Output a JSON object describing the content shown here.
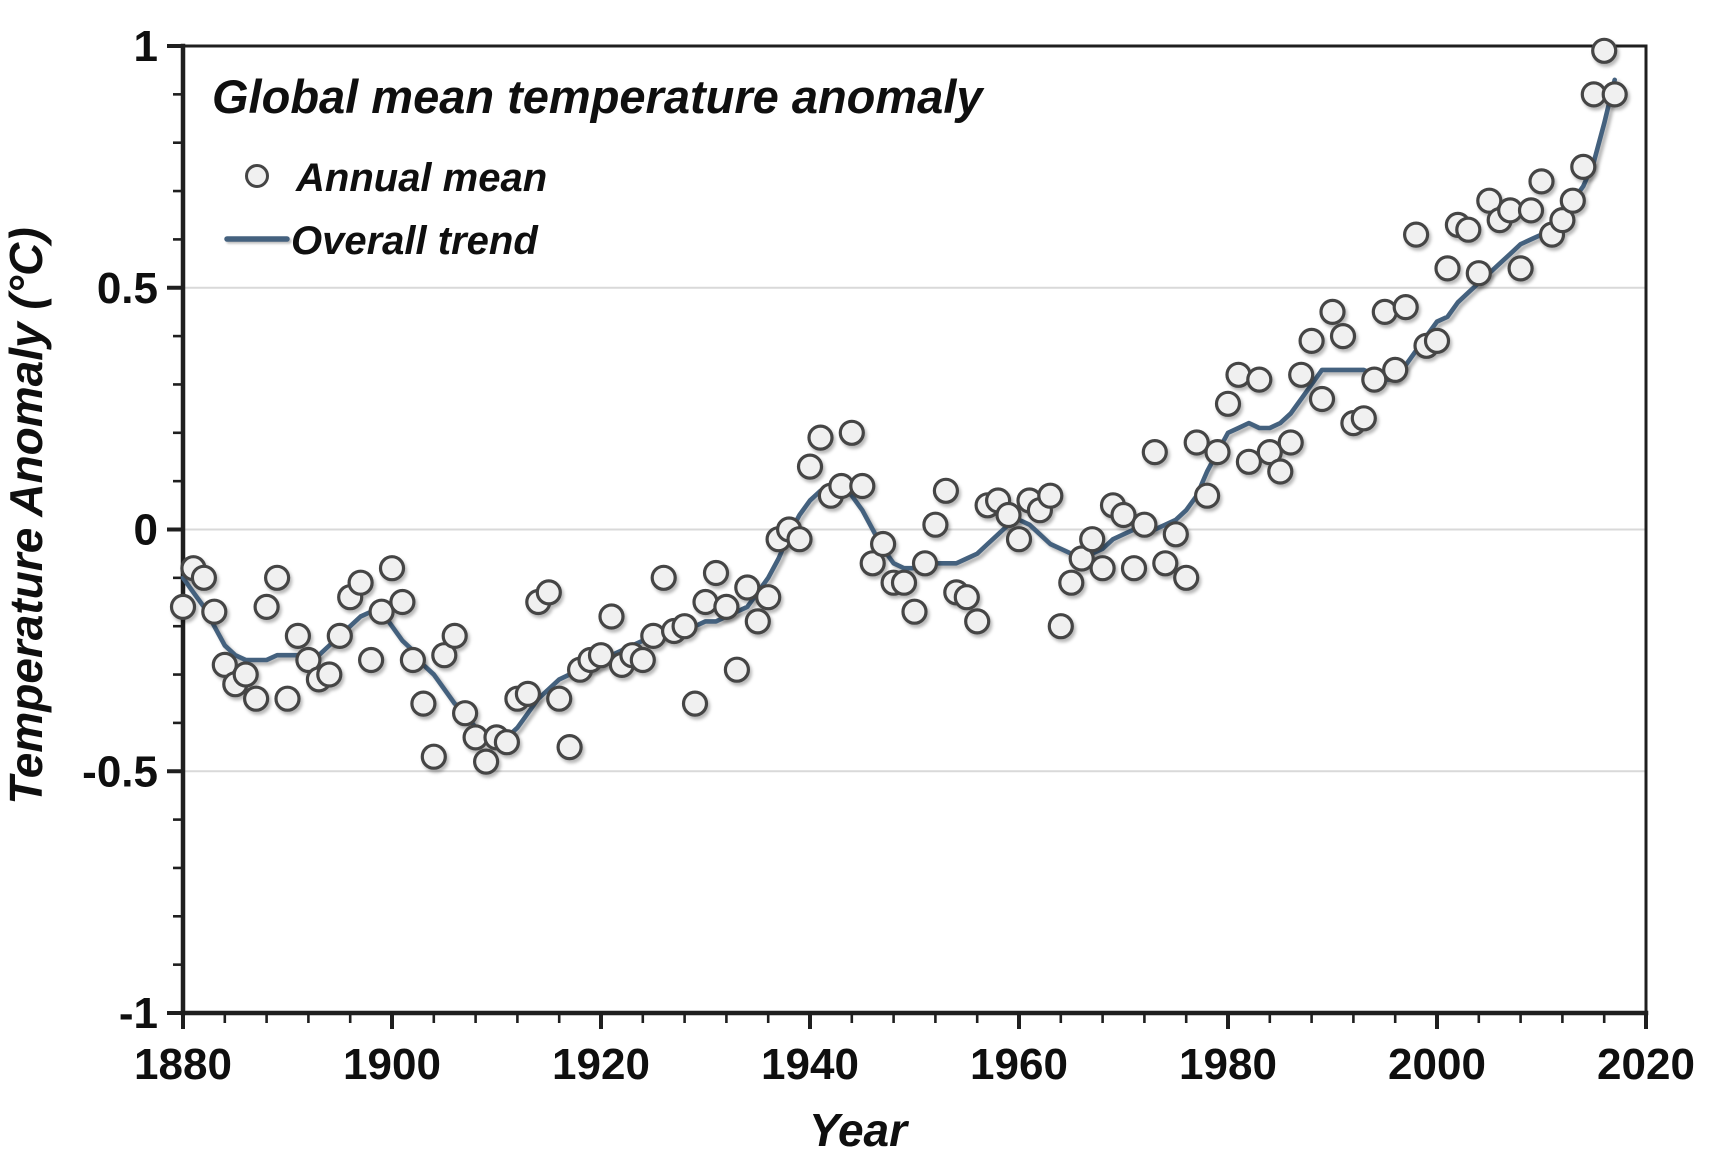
{
  "chart_data": {
    "type": "scatter",
    "title": "Global mean temperature anomaly",
    "xlabel": "Year",
    "ylabel": "Temperature Anomaly (°C)",
    "xlim": [
      1880,
      2020
    ],
    "ylim": [
      -1,
      1
    ],
    "grid": "horizontal-only",
    "legend_position": "top-left",
    "background": "#ffffff",
    "axis_color": "#1f1f1f",
    "grid_color": "#d9d9d9",
    "x_tick_values": [
      1880,
      1900,
      1920,
      1940,
      1960,
      1980,
      2000,
      2020
    ],
    "x_tick_labels": [
      "1880",
      "1900",
      "1920",
      "1940",
      "1960",
      "1980",
      "2000",
      "2020"
    ],
    "x_minor_tick_step": 4,
    "y_tick_values": [
      1,
      0.5,
      0,
      -0.5,
      -1
    ],
    "y_tick_labels": [
      "1",
      "0.5",
      "0",
      "-0.5",
      "-1"
    ],
    "y_minor_tick_step": 0.1,
    "y_gridlines": [
      0.5,
      0,
      -0.5
    ],
    "x_start": 1880,
    "x_end": 2017,
    "series": [
      {
        "name": "Annual mean",
        "type": "scatter",
        "marker": "circle",
        "marker_fill": "#f0f0f0",
        "marker_stroke": "#454545",
        "values": [
          -0.16,
          -0.08,
          -0.1,
          -0.17,
          -0.28,
          -0.32,
          -0.3,
          -0.35,
          -0.16,
          -0.1,
          -0.35,
          -0.22,
          -0.27,
          -0.31,
          -0.3,
          -0.22,
          -0.14,
          -0.11,
          -0.27,
          -0.17,
          -0.08,
          -0.15,
          -0.27,
          -0.36,
          -0.47,
          -0.26,
          -0.22,
          -0.38,
          -0.43,
          -0.48,
          -0.43,
          -0.44,
          -0.35,
          -0.34,
          -0.15,
          -0.13,
          -0.35,
          -0.45,
          -0.29,
          -0.27,
          -0.26,
          -0.18,
          -0.28,
          -0.26,
          -0.27,
          -0.22,
          -0.1,
          -0.21,
          -0.2,
          -0.36,
          -0.15,
          -0.09,
          -0.16,
          -0.29,
          -0.12,
          -0.19,
          -0.14,
          -0.02,
          0.0,
          -0.02,
          0.13,
          0.19,
          0.07,
          0.09,
          0.2,
          0.09,
          -0.07,
          -0.03,
          -0.11,
          -0.11,
          -0.17,
          -0.07,
          0.01,
          0.08,
          -0.13,
          -0.14,
          -0.19,
          0.05,
          0.06,
          0.03,
          -0.02,
          0.06,
          0.04,
          0.07,
          -0.2,
          -0.11,
          -0.06,
          -0.02,
          -0.08,
          0.05,
          0.03,
          -0.08,
          0.01,
          0.16,
          -0.07,
          -0.01,
          -0.1,
          0.18,
          0.07,
          0.16,
          0.26,
          0.32,
          0.14,
          0.31,
          0.16,
          0.12,
          0.18,
          0.32,
          0.39,
          0.27,
          0.45,
          0.4,
          0.22,
          0.23,
          0.31,
          0.45,
          0.33,
          0.46,
          0.61,
          0.38,
          0.39,
          0.54,
          0.63,
          0.62,
          0.53,
          0.68,
          0.64,
          0.66,
          0.54,
          0.66,
          0.72,
          0.61,
          0.64,
          0.68,
          0.75,
          0.9,
          0.99,
          0.9
        ]
      },
      {
        "name": "Overall trend",
        "type": "line",
        "color": "#44617e",
        "values": [
          -0.1,
          -0.13,
          -0.16,
          -0.2,
          -0.24,
          -0.26,
          -0.27,
          -0.27,
          -0.27,
          -0.26,
          -0.26,
          -0.26,
          -0.26,
          -0.26,
          -0.24,
          -0.22,
          -0.2,
          -0.18,
          -0.17,
          -0.17,
          -0.2,
          -0.23,
          -0.25,
          -0.28,
          -0.3,
          -0.33,
          -0.36,
          -0.38,
          -0.41,
          -0.43,
          -0.44,
          -0.43,
          -0.41,
          -0.38,
          -0.35,
          -0.33,
          -0.31,
          -0.3,
          -0.3,
          -0.29,
          -0.28,
          -0.26,
          -0.25,
          -0.24,
          -0.23,
          -0.23,
          -0.22,
          -0.21,
          -0.2,
          -0.2,
          -0.19,
          -0.19,
          -0.18,
          -0.17,
          -0.16,
          -0.13,
          -0.1,
          -0.06,
          -0.01,
          0.03,
          0.06,
          0.08,
          0.09,
          0.09,
          0.07,
          0.04,
          0.0,
          -0.04,
          -0.07,
          -0.08,
          -0.08,
          -0.08,
          -0.07,
          -0.07,
          -0.07,
          -0.06,
          -0.05,
          -0.03,
          -0.01,
          0.01,
          0.02,
          0.01,
          -0.01,
          -0.03,
          -0.04,
          -0.05,
          -0.06,
          -0.05,
          -0.04,
          -0.02,
          -0.01,
          0.0,
          0.0,
          0.0,
          0.01,
          0.02,
          0.04,
          0.07,
          0.12,
          0.16,
          0.2,
          0.21,
          0.22,
          0.21,
          0.21,
          0.22,
          0.24,
          0.27,
          0.3,
          0.33,
          0.33,
          0.33,
          0.33,
          0.33,
          0.32,
          0.31,
          0.31,
          0.34,
          0.37,
          0.4,
          0.43,
          0.44,
          0.47,
          0.49,
          0.51,
          0.53,
          0.55,
          0.57,
          0.59,
          0.6,
          0.61,
          0.63,
          0.65,
          0.68,
          0.71,
          0.76,
          0.84,
          0.93
        ]
      }
    ]
  }
}
